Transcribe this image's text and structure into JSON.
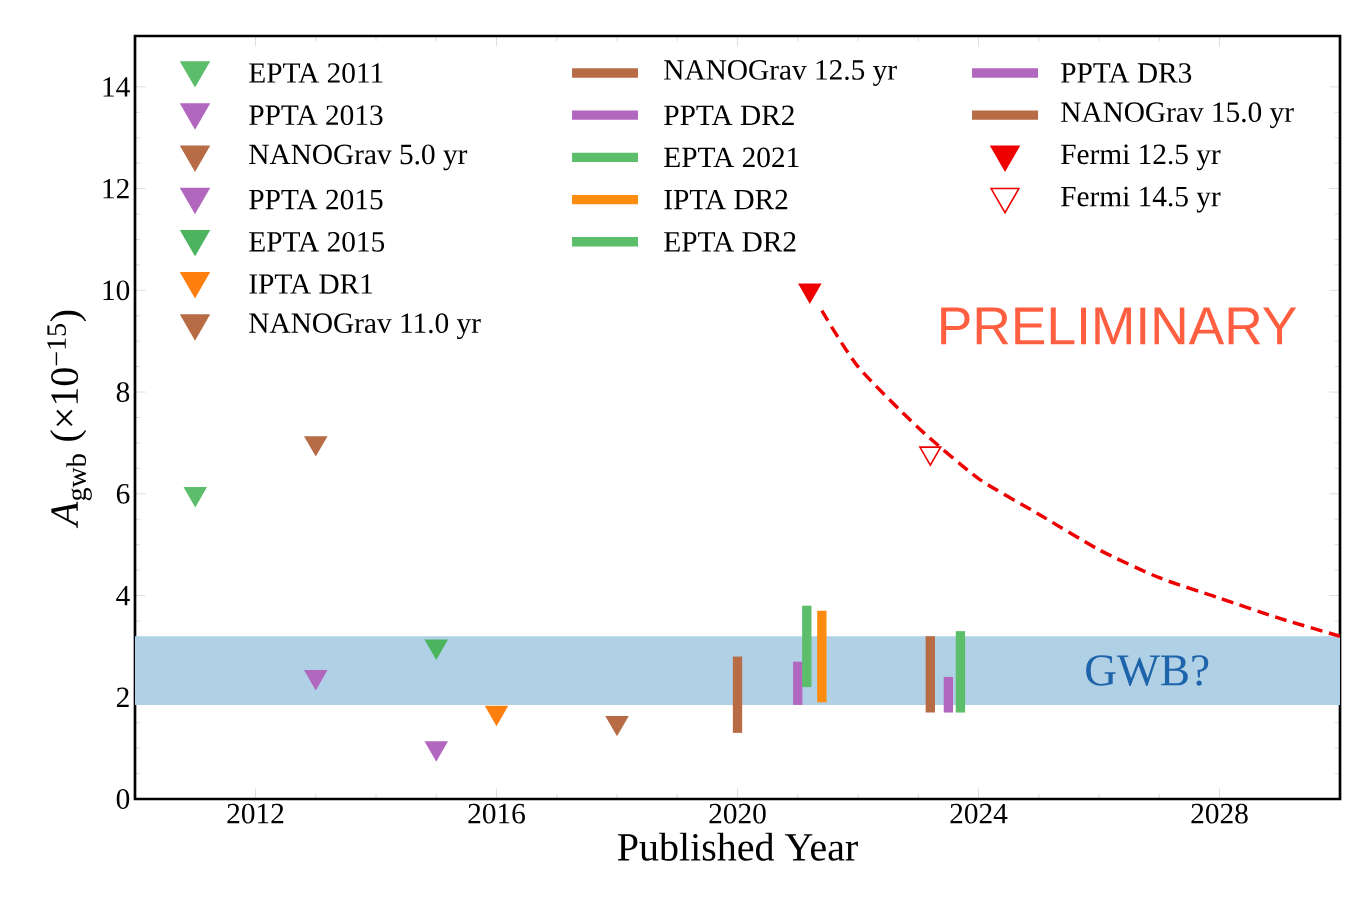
{
  "chart_data": {
    "type": "scatter",
    "xlabel": "Published Year",
    "ylabel": "*A*$_{gwb}$ (×10$^{−15}$)",
    "xlim": [
      2010,
      2030
    ],
    "ylim": [
      0,
      15
    ],
    "xticks": [
      2012,
      2016,
      2020,
      2024,
      2028
    ],
    "yticks": [
      0,
      2,
      4,
      6,
      8,
      10,
      12,
      14
    ],
    "legend": "top",
    "annotations": [
      "PRELIMINARY"
    ],
    "bands": [
      {
        "axis": "y",
        "from": 1.85,
        "to": 3.2,
        "label": "GWB?",
        "color": "#b0d0e6"
      }
    ],
    "series": [
      {
        "name": "EPTA 2011",
        "marker": "triangle",
        "color": "#5cbd6b",
        "x": [
          2011
        ],
        "values": [
          6.0
        ]
      },
      {
        "name": "PPTA 2013",
        "marker": "triangle",
        "color": "#b267bf",
        "x": [
          2013
        ],
        "values": [
          2.4
        ]
      },
      {
        "name": "NANOGrav 5.0 yr",
        "marker": "triangle",
        "color": "#b76c46",
        "x": [
          2013
        ],
        "values": [
          7.0
        ]
      },
      {
        "name": "PPTA 2015",
        "marker": "triangle",
        "color": "#b267bf",
        "x": [
          2015
        ],
        "values": [
          1.0
        ]
      },
      {
        "name": "EPTA 2015",
        "marker": "triangle",
        "color": "#4cb45e",
        "x": [
          2015
        ],
        "values": [
          3.0
        ]
      },
      {
        "name": "IPTA DR1",
        "marker": "triangle",
        "color": "#ff7f0e",
        "x": [
          2016
        ],
        "values": [
          1.7
        ]
      },
      {
        "name": "NANOGrav 11.0 yr",
        "marker": "triangle",
        "color": "#b76c46",
        "x": [
          2018
        ],
        "values": [
          1.5
        ]
      },
      {
        "name": "NANOGrav 12.5 yr",
        "type": "bar",
        "color": "#b76c46",
        "x": [
          2020
        ],
        "base": [
          1.3
        ],
        "values": [
          1.5
        ]
      },
      {
        "name": "PPTA DR2",
        "type": "bar",
        "color": "#b267bf",
        "x": [
          2021.0
        ],
        "base": [
          1.85
        ],
        "values": [
          0.85
        ]
      },
      {
        "name": "EPTA 2021",
        "type": "bar",
        "color": "#5cbd6b",
        "x": [
          2021.15
        ],
        "base": [
          2.2
        ],
        "values": [
          1.6
        ]
      },
      {
        "name": "IPTA DR2",
        "type": "bar",
        "color": "#ff8c0e",
        "x": [
          2021.4
        ],
        "base": [
          1.9
        ],
        "values": [
          1.8
        ]
      },
      {
        "name": "EPTA DR2",
        "type": "bar",
        "color": "#5cbd6b",
        "x": [
          2023.7
        ],
        "base": [
          1.7
        ],
        "values": [
          1.6
        ]
      },
      {
        "name": "PPTA DR3",
        "type": "bar",
        "color": "#b267bf",
        "x": [
          2023.5
        ],
        "base": [
          1.7
        ],
        "values": [
          0.7
        ]
      },
      {
        "name": "NANOGrav 15.0 yr",
        "type": "bar",
        "color": "#b76c46",
        "x": [
          2023.2
        ],
        "base": [
          1.7
        ],
        "values": [
          1.5
        ]
      },
      {
        "name": "Fermi 12.5 yr",
        "marker": "triangle",
        "color": "#ee0000",
        "x": [
          2021.2
        ],
        "values": [
          10.0
        ]
      },
      {
        "name": "Fermi 14.5 yr",
        "marker": "triangle-open",
        "color": "#ee0000",
        "x": [
          2023.2
        ],
        "values": [
          6.8
        ]
      },
      {
        "type": "line",
        "line_style": "dashed",
        "color": "#ee0000",
        "x": [
          2021.4,
          2022.0,
          2023.0,
          2024.0,
          2025.0,
          2026.0,
          2027.0,
          2028.0,
          2029.0,
          2030.0
        ],
        "values": [
          9.6,
          8.5,
          7.3,
          6.3,
          5.6,
          4.9,
          4.35,
          3.95,
          3.55,
          3.2
        ]
      }
    ]
  }
}
